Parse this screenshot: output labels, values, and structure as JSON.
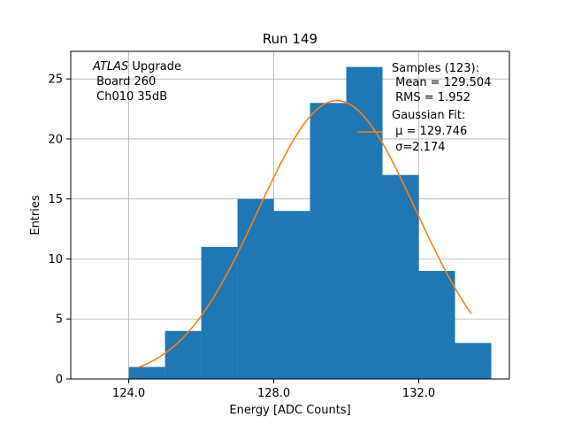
{
  "chart_data": {
    "type": "bar",
    "title": "Run 149",
    "xlabel": "Energy [ADC Counts]",
    "ylabel": "Entries",
    "xlim": [
      122.4,
      134.5
    ],
    "ylim": [
      0,
      27.3
    ],
    "xticks": [
      124.0,
      128.0,
      132.0
    ],
    "xtick_labels": [
      "124.0",
      "128.0",
      "132.0"
    ],
    "yticks": [
      0,
      5,
      10,
      15,
      20,
      25
    ],
    "ytick_labels": [
      "0",
      "5",
      "10",
      "15",
      "20",
      "25"
    ],
    "grid": true,
    "annotation": {
      "line1_italic": "ATLAS",
      "line1_rest": " Upgrade",
      "line2": " Board 260",
      "line3": " Ch010 35dB"
    },
    "histogram": {
      "name": "Samples (123):",
      "color": "#1f77b4",
      "bin_edges": [
        124.0,
        125.0,
        126.0,
        127.0,
        128.0,
        129.0,
        130.0,
        131.0,
        132.0,
        133.0,
        134.0
      ],
      "counts": [
        1,
        4,
        11,
        15,
        14,
        23,
        26,
        17,
        9,
        3
      ],
      "legend_lines": [
        " Mean = 129.504",
        " RMS = 1.952"
      ]
    },
    "fit": {
      "name": "Gaussian Fit:",
      "color": "#ff7f0e",
      "mu": 129.746,
      "sigma": 2.174,
      "peak": 23.2,
      "x_range": [
        124.25,
        133.45
      ],
      "legend_lines": [
        " μ = 129.746",
        " σ=2.174"
      ]
    },
    "legend_placement": "top-right"
  }
}
